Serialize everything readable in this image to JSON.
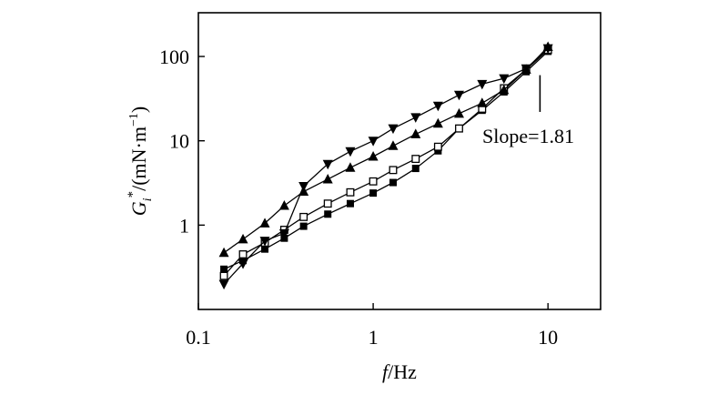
{
  "chart_data": {
    "type": "line",
    "x_scale": "log",
    "y_scale": "log",
    "xlim": [
      0.1,
      20
    ],
    "ylim": [
      0.1,
      330
    ],
    "grid": false,
    "xlabel": {
      "italic": "f",
      "rest": "/Hz"
    },
    "ylabel": {
      "italic": "G",
      "sub": "i",
      "sup": "*",
      "rest": "/(mN·m",
      "sup2": "−1",
      "close": ")"
    },
    "x_ticks": [
      {
        "value": 0.1,
        "label": "0.1"
      },
      {
        "value": 1,
        "label": "1"
      },
      {
        "value": 10,
        "label": "10"
      }
    ],
    "y_ticks": [
      {
        "value": 1,
        "label": "1"
      },
      {
        "value": 10,
        "label": "10"
      },
      {
        "value": 100,
        "label": "100"
      }
    ],
    "annotation": {
      "text": "Slope=1.81",
      "x": 9.0,
      "y_from": 22,
      "y_to": 60
    },
    "series": [
      {
        "marker": "square-filled",
        "x": [
          0.14,
          0.18,
          0.24,
          0.31,
          0.4,
          0.55,
          0.74,
          1.0,
          1.3,
          1.75,
          2.35,
          3.1,
          4.2,
          5.6,
          7.5,
          10
        ],
        "y": [
          0.3,
          0.38,
          0.52,
          0.7,
          0.97,
          1.35,
          1.8,
          2.4,
          3.2,
          4.7,
          7.6,
          14,
          23,
          38,
          66,
          115
        ]
      },
      {
        "marker": "square-open",
        "x": [
          0.14,
          0.18,
          0.24,
          0.31,
          0.4,
          0.55,
          0.74,
          1.0,
          1.3,
          1.75,
          2.35,
          3.1,
          4.2,
          5.6,
          7.5,
          10
        ],
        "y": [
          0.25,
          0.45,
          0.62,
          0.88,
          1.25,
          1.8,
          2.45,
          3.3,
          4.5,
          6.1,
          8.5,
          14,
          24,
          42,
          70,
          120
        ]
      },
      {
        "marker": "triangle-up",
        "x": [
          0.14,
          0.18,
          0.24,
          0.31,
          0.4,
          0.55,
          0.74,
          1.0,
          1.3,
          1.75,
          2.35,
          3.1,
          4.2,
          5.6,
          7.5,
          10
        ],
        "y": [
          0.47,
          0.68,
          1.05,
          1.7,
          2.5,
          3.5,
          4.8,
          6.5,
          8.7,
          12,
          16,
          21,
          28,
          40,
          70,
          130
        ]
      },
      {
        "marker": "triangle-down",
        "x": [
          0.14,
          0.18,
          0.24,
          0.31,
          0.4,
          0.55,
          0.74,
          1.0,
          1.3,
          1.75,
          2.35,
          3.1,
          4.2,
          5.6,
          7.5,
          10
        ],
        "y": [
          0.2,
          0.35,
          0.65,
          0.8,
          2.9,
          5.3,
          7.5,
          10,
          14,
          19,
          26,
          35,
          47,
          55,
          72,
          125
        ]
      }
    ]
  }
}
